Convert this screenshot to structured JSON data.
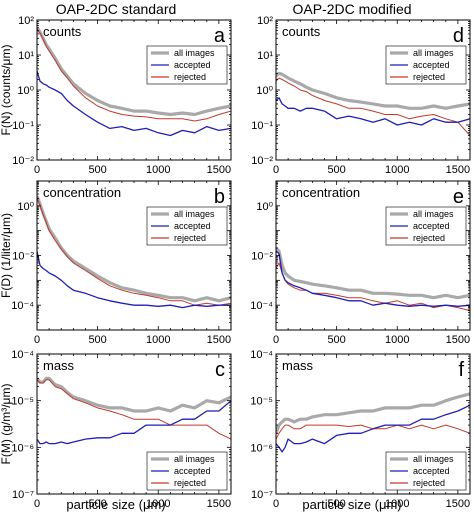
{
  "column_titles": [
    "OAP-2DC standard",
    "OAP-2DC modified"
  ],
  "xlabel": "particle size  (μm)",
  "series_colors": {
    "all images": "#a9a9a9",
    "accepted": "#1f1fb4",
    "rejected": "#c0392b"
  },
  "chart_data": [
    {
      "type": "line",
      "panel_letter": "a",
      "corner_label": "counts",
      "ylabel": "F(N)  (counts/μm)",
      "xlim": [
        0,
        1600
      ],
      "ylim": [
        0.01,
        100
      ],
      "yscale": "log",
      "xticks": [
        0,
        500,
        1000,
        1500
      ],
      "yticks": [
        0.01,
        0.1,
        1,
        10,
        100
      ],
      "yticklabels": [
        "10⁻²",
        "10⁻¹",
        "10⁰",
        "10¹",
        "10²"
      ],
      "legend": [
        "all images",
        "accepted",
        "rejected"
      ],
      "legend_position": "upper-right",
      "x": [
        0,
        25,
        50,
        75,
        100,
        150,
        200,
        250,
        300,
        400,
        500,
        600,
        700,
        800,
        900,
        1000,
        1100,
        1200,
        1300,
        1400,
        1500,
        1600
      ],
      "series": [
        {
          "name": "all images",
          "values": [
            60,
            45,
            30,
            20,
            15,
            8,
            4,
            2.5,
            1.5,
            0.8,
            0.5,
            0.35,
            0.3,
            0.25,
            0.25,
            0.22,
            0.2,
            0.22,
            0.2,
            0.25,
            0.3,
            0.35
          ]
        },
        {
          "name": "accepted",
          "values": [
            3.5,
            1.8,
            1.5,
            1.4,
            1.2,
            1.0,
            0.8,
            0.5,
            0.35,
            0.2,
            0.12,
            0.08,
            0.09,
            0.07,
            0.08,
            0.06,
            0.05,
            0.07,
            0.06,
            0.09,
            0.07,
            0.08
          ]
        },
        {
          "name": "rejected",
          "values": [
            55,
            42,
            28,
            18,
            13,
            7,
            3.5,
            2.2,
            1.3,
            0.6,
            0.35,
            0.25,
            0.2,
            0.18,
            0.17,
            0.15,
            0.15,
            0.15,
            0.13,
            0.15,
            0.2,
            0.25
          ]
        }
      ]
    },
    {
      "type": "line",
      "panel_letter": "d",
      "corner_label": "counts",
      "ylabel": "",
      "xlim": [
        0,
        1600
      ],
      "ylim": [
        0.01,
        100
      ],
      "yscale": "log",
      "xticks": [
        0,
        500,
        1000,
        1500
      ],
      "yticks": [
        0.01,
        0.1,
        1,
        10,
        100
      ],
      "yticklabels": [
        "10⁻²",
        "10⁻¹",
        "10⁰",
        "10¹",
        "10²"
      ],
      "legend": [
        "all images",
        "accepted",
        "rejected"
      ],
      "legend_position": "upper-right",
      "x": [
        0,
        25,
        50,
        75,
        100,
        150,
        200,
        250,
        300,
        400,
        500,
        600,
        700,
        800,
        900,
        1000,
        1100,
        1200,
        1300,
        1400,
        1500,
        1600
      ],
      "series": [
        {
          "name": "all images",
          "values": [
            2.5,
            3.0,
            2.8,
            2.5,
            2.2,
            1.8,
            1.5,
            1.2,
            1.0,
            0.8,
            0.6,
            0.5,
            0.45,
            0.4,
            0.35,
            0.35,
            0.3,
            0.3,
            0.35,
            0.3,
            0.35,
            0.4
          ]
        },
        {
          "name": "accepted",
          "values": [
            0.5,
            0.6,
            0.4,
            0.35,
            0.3,
            0.3,
            0.25,
            0.3,
            0.3,
            0.25,
            0.15,
            0.18,
            0.15,
            0.12,
            0.15,
            0.1,
            0.12,
            0.1,
            0.15,
            0.12,
            0.12,
            0.15
          ]
        },
        {
          "name": "rejected",
          "values": [
            1.8,
            2.2,
            2.0,
            1.8,
            1.6,
            1.3,
            1.0,
            0.9,
            0.7,
            0.5,
            0.4,
            0.3,
            0.3,
            0.25,
            0.2,
            0.2,
            0.15,
            0.18,
            0.2,
            0.15,
            0.12,
            0.05
          ]
        }
      ]
    },
    {
      "type": "line",
      "panel_letter": "b",
      "corner_label": "concentration",
      "ylabel": "F(D)  (1/liter/μm)",
      "xlim": [
        0,
        1600
      ],
      "ylim": [
        1e-05,
        10
      ],
      "yscale": "log",
      "xticks": [
        0,
        500,
        1000,
        1500
      ],
      "yticks": [
        0.0001,
        0.01,
        1
      ],
      "yticklabels": [
        "10⁻⁴",
        "10⁻²",
        "10⁰"
      ],
      "legend": [
        "all images",
        "accepted",
        "rejected"
      ],
      "legend_position": "upper-right",
      "x": [
        0,
        25,
        50,
        75,
        100,
        150,
        200,
        250,
        300,
        400,
        500,
        600,
        700,
        800,
        900,
        1000,
        1100,
        1200,
        1300,
        1400,
        1500,
        1600
      ],
      "series": [
        {
          "name": "all images",
          "values": [
            2.5,
            1.2,
            0.5,
            0.25,
            0.12,
            0.05,
            0.02,
            0.01,
            0.006,
            0.003,
            0.0015,
            0.0008,
            0.0005,
            0.0004,
            0.0003,
            0.00025,
            0.0002,
            0.0002,
            0.00015,
            0.0002,
            0.00015,
            0.0002
          ]
        },
        {
          "name": "accepted",
          "values": [
            0.015,
            0.004,
            0.003,
            0.0025,
            0.002,
            0.0015,
            0.001,
            0.0006,
            0.0004,
            0.0003,
            0.0002,
            0.00015,
            0.00012,
            0.0001,
            0.0001,
            9e-05,
            0.0001,
            8e-05,
            0.0001,
            9e-05,
            0.0001,
            0.0001
          ]
        },
        {
          "name": "rejected",
          "values": [
            2.2,
            1.0,
            0.45,
            0.22,
            0.1,
            0.04,
            0.018,
            0.009,
            0.005,
            0.0025,
            0.0012,
            0.0006,
            0.0004,
            0.0003,
            0.00025,
            0.0002,
            0.00015,
            0.00015,
            0.0001,
            0.00012,
            0.0001,
            0.00012
          ]
        }
      ]
    },
    {
      "type": "line",
      "panel_letter": "e",
      "corner_label": "concentration",
      "ylabel": "",
      "xlim": [
        0,
        1600
      ],
      "ylim": [
        1e-05,
        10
      ],
      "yscale": "log",
      "xticks": [
        0,
        500,
        1000,
        1500
      ],
      "yticks": [
        0.0001,
        0.01,
        1
      ],
      "yticklabels": [
        "10⁻⁴",
        "10⁻²",
        "10⁰"
      ],
      "legend": [
        "all images",
        "accepted",
        "rejected"
      ],
      "legend_position": "upper-right",
      "x": [
        0,
        25,
        50,
        75,
        100,
        150,
        200,
        250,
        300,
        400,
        500,
        600,
        700,
        800,
        900,
        1000,
        1100,
        1200,
        1300,
        1400,
        1500,
        1600
      ],
      "series": [
        {
          "name": "all images",
          "values": [
            0.02,
            0.015,
            0.004,
            0.002,
            0.0015,
            0.001,
            0.0009,
            0.0008,
            0.0007,
            0.0006,
            0.0005,
            0.0004,
            0.0004,
            0.0003,
            0.0003,
            0.00028,
            0.00025,
            0.00025,
            0.0002,
            0.00025,
            0.0002,
            0.00025
          ]
        },
        {
          "name": "accepted",
          "values": [
            0.015,
            0.012,
            0.002,
            0.001,
            0.0008,
            0.0006,
            0.0005,
            0.0004,
            0.0003,
            0.00025,
            0.0002,
            0.00015,
            0.00015,
            0.0001,
            0.00012,
            0.0001,
            9e-05,
            0.0001,
            9e-05,
            0.0001,
            9e-05,
            0.0001
          ]
        },
        {
          "name": "rejected",
          "values": [
            0.003,
            0.005,
            0.002,
            0.001,
            0.0007,
            0.0005,
            0.0004,
            0.0004,
            0.0003,
            0.0003,
            0.00025,
            0.0002,
            0.0002,
            0.00015,
            0.00012,
            0.00015,
            0.0001,
            0.00012,
            8e-05,
            0.0001,
            8e-05,
            6e-05
          ]
        }
      ]
    },
    {
      "type": "line",
      "panel_letter": "c",
      "corner_label": "mass",
      "ylabel": "F(M)  (g/m³/μm)",
      "xlim": [
        0,
        1600
      ],
      "ylim": [
        1e-07,
        0.0001
      ],
      "yscale": "log",
      "xticks": [
        0,
        500,
        1000,
        1500
      ],
      "yticks": [
        1e-07,
        1e-06,
        1e-05,
        0.0001
      ],
      "yticklabels": [
        "10⁻⁷",
        "10⁻⁶",
        "10⁻⁵",
        "10⁻⁴"
      ],
      "legend": [
        "all images",
        "accepted",
        "rejected"
      ],
      "legend_position": "lower-right",
      "x": [
        0,
        25,
        50,
        75,
        100,
        150,
        200,
        250,
        300,
        400,
        500,
        600,
        700,
        800,
        900,
        1000,
        1100,
        1200,
        1300,
        1400,
        1500,
        1600
      ],
      "series": [
        {
          "name": "all images",
          "values": [
            3e-05,
            2.5e-05,
            2.5e-05,
            3e-05,
            3e-05,
            2.2e-05,
            2e-05,
            1.5e-05,
            1.2e-05,
            1e-05,
            8e-06,
            7e-06,
            7e-06,
            6e-06,
            6e-06,
            7e-06,
            6e-06,
            8e-06,
            7e-06,
            1e-05,
            9e-06,
            1.2e-05
          ]
        },
        {
          "name": "accepted",
          "values": [
            1.5e-06,
            1.2e-06,
            1.2e-06,
            1.3e-06,
            1.2e-06,
            1.2e-06,
            1.3e-06,
            1.2e-06,
            1.3e-06,
            1.5e-06,
            1.6e-06,
            1.6e-06,
            2e-06,
            2e-06,
            3e-06,
            3e-06,
            3e-06,
            4e-06,
            4e-06,
            6e-06,
            6e-06,
            1e-05
          ]
        },
        {
          "name": "rejected",
          "values": [
            2.8e-05,
            2.4e-05,
            2.4e-05,
            2.8e-05,
            2.8e-05,
            2e-05,
            1.8e-05,
            1.4e-05,
            1.1e-05,
            9e-06,
            7e-06,
            6e-06,
            5e-06,
            4e-06,
            4e-06,
            4e-06,
            3e-06,
            3e-06,
            3e-06,
            3e-06,
            2e-06,
            1.5e-06
          ]
        }
      ]
    },
    {
      "type": "line",
      "panel_letter": "f",
      "corner_label": "mass",
      "ylabel": "",
      "xlim": [
        0,
        1600
      ],
      "ylim": [
        1e-07,
        0.0001
      ],
      "yscale": "log",
      "xticks": [
        0,
        500,
        1000,
        1500
      ],
      "yticks": [
        1e-07,
        1e-06,
        1e-05,
        0.0001
      ],
      "yticklabels": [
        "10⁻⁷",
        "10⁻⁶",
        "10⁻⁵",
        "10⁻⁴"
      ],
      "legend": [
        "all images",
        "accepted",
        "rejected"
      ],
      "legend_position": "lower-right",
      "x": [
        0,
        25,
        50,
        75,
        100,
        150,
        200,
        250,
        300,
        400,
        500,
        600,
        700,
        800,
        900,
        1000,
        1100,
        1200,
        1300,
        1400,
        1500,
        1600
      ],
      "series": [
        {
          "name": "all images",
          "values": [
            2e-06,
            3e-06,
            3.5e-06,
            4e-06,
            4e-06,
            3.5e-06,
            4e-06,
            4e-06,
            4.5e-06,
            5e-06,
            5e-06,
            5.5e-06,
            6e-06,
            6e-06,
            7e-06,
            7e-06,
            7e-06,
            8e-06,
            8e-06,
            1e-05,
            1.2e-05,
            1.4e-05
          ]
        },
        {
          "name": "accepted",
          "values": [
            1.2e-06,
            1e-06,
            8e-07,
            1e-06,
            1.5e-06,
            1.2e-06,
            1.2e-06,
            1.3e-06,
            1.5e-06,
            1.2e-06,
            1.8e-06,
            2e-06,
            2e-06,
            2.5e-06,
            3e-06,
            3e-06,
            3e-06,
            4e-06,
            4e-06,
            5e-06,
            6e-06,
            8e-06
          ]
        },
        {
          "name": "rejected",
          "values": [
            1.5e-06,
            2e-06,
            2.5e-06,
            3e-06,
            3e-06,
            2.5e-06,
            2.5e-06,
            3e-06,
            3e-06,
            3e-06,
            3e-06,
            2.8e-06,
            3e-06,
            2.5e-06,
            2.5e-06,
            3e-06,
            2.5e-06,
            3e-06,
            2.5e-06,
            3e-06,
            2.5e-06,
            2e-06
          ]
        }
      ]
    }
  ]
}
